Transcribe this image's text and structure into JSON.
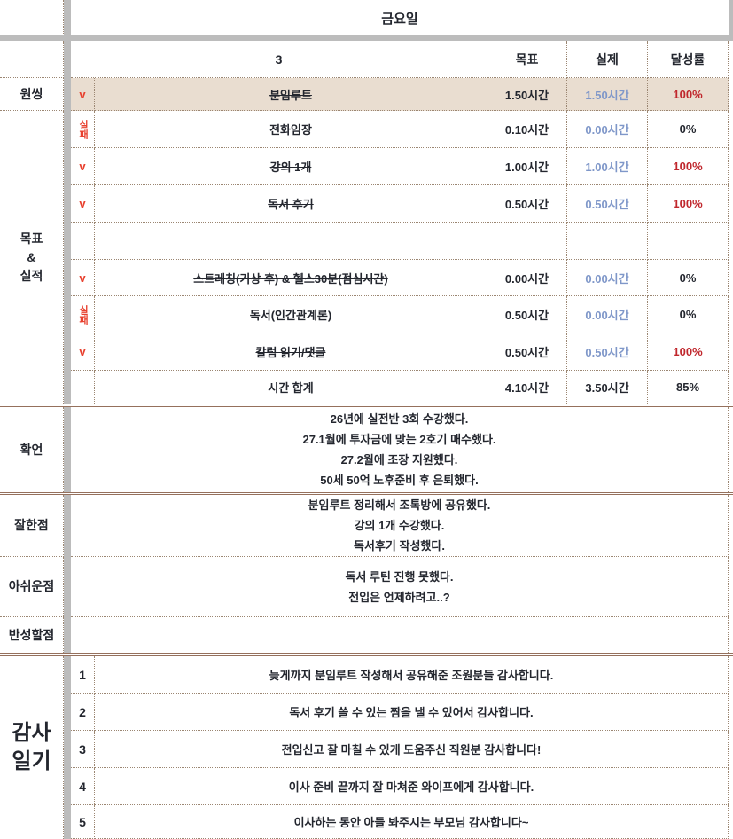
{
  "colors": {
    "accent_red": "#e8402e",
    "rate_red": "#c0272d",
    "actual_blue": "#7f97c9",
    "highlight_bg": "#e9ddd0",
    "grid_dot": "#9b8672",
    "section_border": "#95705c",
    "gray_strip": "#bcbcbc"
  },
  "header": {
    "day": "금요일",
    "week": "3",
    "col_goal": "목표",
    "col_actual": "실제",
    "col_rate": "달성률"
  },
  "sidebar": {
    "one_thing": "원씽",
    "goals_results": "목표\n&\n실적",
    "affirmation": "확언",
    "well_done": "잘한점",
    "regret": "아쉬운점",
    "reflection": "반성할점",
    "gratitude": "감사\n일기"
  },
  "tasks": [
    {
      "check": "v",
      "name": "분임루트",
      "goal": "1.50시간",
      "actual": "1.50시간",
      "rate": "100%"
    },
    {
      "check": "실패",
      "name": "전화임장",
      "goal": "0.10시간",
      "actual": "0.00시간",
      "rate": "0%"
    },
    {
      "check": "v",
      "name": "강의 1개",
      "goal": "1.00시간",
      "actual": "1.00시간",
      "rate": "100%"
    },
    {
      "check": "v",
      "name": "독서 후기",
      "goal": "0.50시간",
      "actual": "0.50시간",
      "rate": "100%"
    },
    {
      "check": "",
      "name": "",
      "goal": "",
      "actual": "",
      "rate": ""
    },
    {
      "check": "v",
      "name": "스트레칭(기상 후) & 헬스30분(점심시간)",
      "goal": "0.00시간",
      "actual": "0.00시간",
      "rate": "0%"
    },
    {
      "check": "실패",
      "name": "독서(인간관계론)",
      "goal": "0.50시간",
      "actual": "0.00시간",
      "rate": "0%"
    },
    {
      "check": "v",
      "name": "칼럼 읽기/댓글",
      "goal": "0.50시간",
      "actual": "0.50시간",
      "rate": "100%"
    }
  ],
  "total": {
    "label": "시간 합계",
    "goal": "4.10시간",
    "actual": "3.50시간",
    "rate": "85%"
  },
  "affirmation_lines": [
    "26년에 실전반 3회 수강했다.",
    "27.1월에 투자금에 맞는 2호기 매수했다.",
    "27.2월에 조장 지원했다.",
    "50세 50억 노후준비 후 은퇴했다."
  ],
  "well_done_lines": [
    "분임루트 정리해서 조톡방에 공유했다.",
    "강의 1개 수강했다.",
    "독서후기 작성했다."
  ],
  "regret_lines": [
    "독서 루틴 진행 못했다.",
    "전입은 언제하려고..?"
  ],
  "gratitude_entries": [
    {
      "num": "1",
      "text": "늦게까지 분임루트 작성해서 공유해준 조원분들 감사합니다."
    },
    {
      "num": "2",
      "text": "독서 후기 쓸 수 있는 짬을 낼 수 있어서 감사합니다."
    },
    {
      "num": "3",
      "text": "전입신고 잘 마칠 수 있게 도움주신 직원분 감사합니다!"
    },
    {
      "num": "4",
      "text": "이사 준비 끝까지 잘 마쳐준 와이프에게 감사합니다."
    },
    {
      "num": "5",
      "text": "이사하는 동안 아들 봐주시는 부모님 감사합니다~"
    }
  ]
}
